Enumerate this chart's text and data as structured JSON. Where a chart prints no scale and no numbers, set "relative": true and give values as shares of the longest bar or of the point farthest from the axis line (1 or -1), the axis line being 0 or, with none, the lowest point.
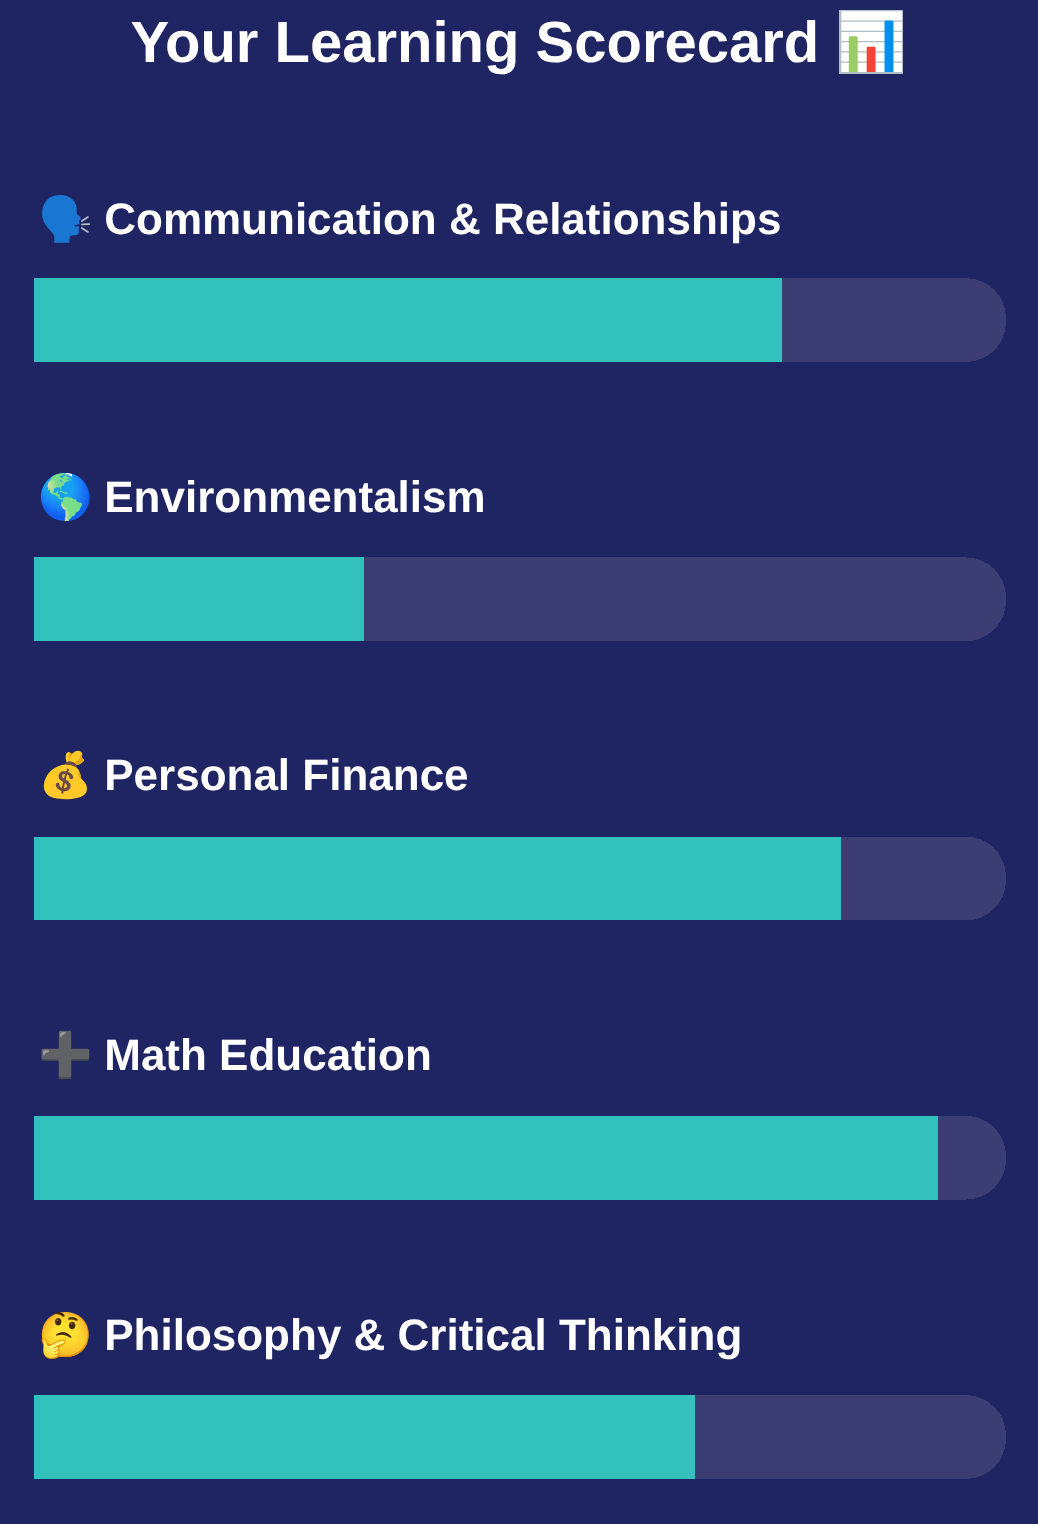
{
  "chart_data": {
    "type": "bar",
    "title": "Your Learning Scorecard 📊",
    "orientation": "horizontal",
    "stacked": true,
    "relative": true,
    "categories": [
      "🗣️ Communication & Relationships",
      "🌎 Environmentalism",
      "💰 Personal Finance",
      "➕ Math Education",
      "🤔 Philosophy & Critical Thinking"
    ],
    "series": [
      {
        "color": "#33c1bd",
        "values": [
          0.77,
          0.34,
          0.83,
          0.93,
          0.68
        ]
      },
      {
        "color": "#3c3d72",
        "values": [
          0.23,
          0.66,
          0.17,
          0.07,
          0.32
        ]
      }
    ]
  }
}
